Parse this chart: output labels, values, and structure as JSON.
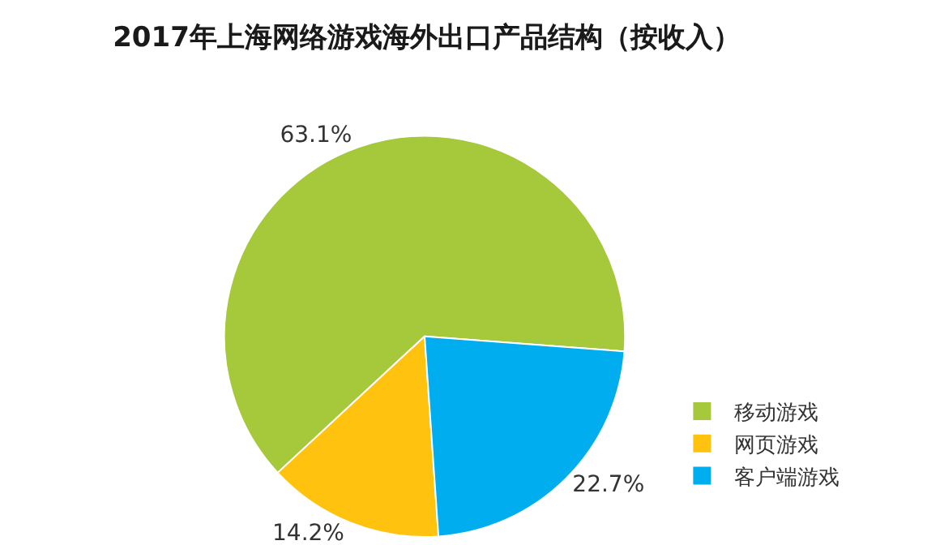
{
  "chart_data": {
    "type": "pie",
    "title": "2017年上海网络游戏海外出口产品结构（按收入）",
    "categories": [
      "移动游戏",
      "网页游戏",
      "客户端游戏"
    ],
    "values": [
      63.1,
      14.2,
      22.7
    ],
    "colors": [
      "#a5c93a",
      "#ffc20e",
      "#00aeef"
    ],
    "value_labels": [
      "63.1%",
      "14.2%",
      "22.7%"
    ],
    "legend": "bottom right"
  }
}
